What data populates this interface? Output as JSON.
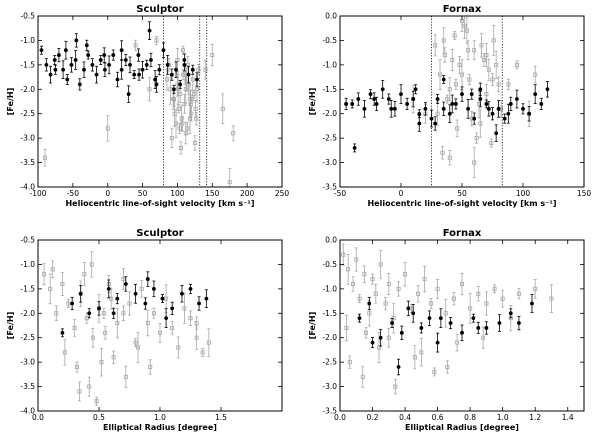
{
  "colors": {
    "member": "#000000",
    "field": "#a6a6a6",
    "axis": "#000000"
  },
  "chart_data": [
    {
      "type": "scatter",
      "title": "Sculptor",
      "xlabel": "Heliocentric line-of-sight velocity [km s⁻¹]",
      "ylabel": "[Fe/H]",
      "xlim": [
        -100,
        250
      ],
      "ylim": [
        -4.0,
        -0.5
      ],
      "xticks": [
        -100,
        -50,
        0,
        50,
        100,
        150,
        200,
        250
      ],
      "yticks": [
        -4.0,
        -3.5,
        -3.0,
        -2.5,
        -2.0,
        -1.5,
        -1.0,
        -0.5
      ],
      "vlines": [
        80,
        132,
        142
      ],
      "series": [
        {
          "name": "member",
          "x": [
            -95,
            -88,
            -82,
            -76,
            -70,
            -64,
            -58,
            -52,
            -46,
            -40,
            -34,
            -28,
            -22,
            -16,
            -10,
            -4,
            2,
            8,
            14,
            20,
            26,
            32,
            38,
            44,
            50,
            56,
            62,
            68,
            74,
            80,
            86,
            92,
            98,
            104,
            110,
            116,
            122,
            128,
            -60,
            -30,
            -5,
            20,
            45,
            70,
            95,
            110,
            30,
            -75,
            -45,
            60
          ],
          "y": [
            -1.2,
            -1.5,
            -1.7,
            -1.4,
            -1.3,
            -1.6,
            -1.8,
            -1.5,
            -1.4,
            -1.9,
            -1.6,
            -1.3,
            -1.5,
            -1.7,
            -1.4,
            -1.6,
            -1.5,
            -1.3,
            -1.8,
            -1.6,
            -1.4,
            -1.5,
            -1.7,
            -1.3,
            -1.6,
            -1.5,
            -1.4,
            -1.8,
            -1.6,
            -1.2,
            -1.5,
            -1.7,
            -1.6,
            -1.9,
            -1.5,
            -1.7,
            -1.6,
            -1.8,
            -1.2,
            -1.1,
            -1.3,
            -1.2,
            -1.7,
            -1.9,
            -2.0,
            -1.4,
            -2.1,
            -1.6,
            -1.0,
            -0.8
          ]
        },
        {
          "name": "field",
          "x": [
            85,
            90,
            95,
            100,
            102,
            104,
            106,
            108,
            110,
            112,
            114,
            116,
            118,
            120,
            122,
            124,
            126,
            128,
            130,
            92,
            98,
            105,
            112,
            118,
            125,
            100,
            108,
            115,
            96,
            103,
            111,
            119,
            127,
            150,
            165,
            180,
            60,
            70,
            -90,
            0,
            40,
            140,
            175,
            88,
            94,
            101,
            107,
            113,
            121
          ],
          "y": [
            -1.8,
            -2.0,
            -2.2,
            -1.9,
            -2.4,
            -2.1,
            -2.6,
            -1.7,
            -2.3,
            -2.0,
            -2.8,
            -1.9,
            -2.2,
            -2.5,
            -1.8,
            -2.1,
            -2.4,
            -2.0,
            -1.6,
            -3.0,
            -2.7,
            -3.2,
            -2.9,
            -2.6,
            -3.1,
            -1.4,
            -1.2,
            -1.5,
            -2.5,
            -2.8,
            -1.7,
            -2.3,
            -2.6,
            -1.3,
            -2.4,
            -2.9,
            -2.0,
            -1.0,
            -3.4,
            -2.8,
            -1.1,
            -1.6,
            -3.9,
            -1.5,
            -2.2,
            -2.0,
            -2.7,
            -1.8,
            -2.2
          ]
        }
      ]
    },
    {
      "type": "scatter",
      "title": "Fornax",
      "xlabel": "Heliocentric line-of-sight velocity [km s⁻¹]",
      "ylabel": "[Fe/H]",
      "xlim": [
        -50,
        150
      ],
      "ylim": [
        -3.5,
        0.0
      ],
      "xticks": [
        -50,
        0,
        50,
        100,
        150
      ],
      "yticks": [
        -3.5,
        -3.0,
        -2.5,
        -2.0,
        -1.5,
        -1.0,
        -0.5,
        0.0
      ],
      "vlines": [
        25,
        83
      ],
      "series": [
        {
          "name": "member",
          "x": [
            -40,
            -35,
            -30,
            -25,
            -20,
            -15,
            -10,
            -5,
            0,
            5,
            10,
            15,
            20,
            25,
            30,
            35,
            40,
            45,
            50,
            55,
            60,
            65,
            70,
            75,
            80,
            85,
            90,
            95,
            100,
            105,
            110,
            115,
            120,
            -38,
            -22,
            -8,
            12,
            28,
            42,
            58,
            72,
            88,
            -45,
            15,
            35,
            65,
            78
          ],
          "y": [
            -1.8,
            -1.7,
            -1.9,
            -1.6,
            -1.8,
            -1.5,
            -1.7,
            -1.9,
            -1.6,
            -1.8,
            -1.7,
            -2.0,
            -1.9,
            -2.1,
            -1.7,
            -1.9,
            -2.0,
            -1.8,
            -1.6,
            -1.9,
            -2.1,
            -1.7,
            -1.8,
            -2.0,
            -1.9,
            -2.1,
            -1.8,
            -1.7,
            -1.9,
            -2.0,
            -1.6,
            -1.8,
            -1.5,
            -2.7,
            -1.7,
            -1.9,
            -1.5,
            -2.2,
            -1.8,
            -1.6,
            -1.9,
            -2.0,
            -1.8,
            -2.2,
            -1.3,
            -1.5,
            -2.4
          ]
        },
        {
          "name": "field",
          "x": [
            28,
            32,
            36,
            40,
            44,
            48,
            52,
            56,
            60,
            64,
            68,
            72,
            76,
            80,
            30,
            38,
            46,
            54,
            62,
            70,
            78,
            34,
            42,
            50,
            58,
            66,
            74,
            82,
            35,
            45,
            55,
            65,
            75,
            50,
            60,
            40,
            70,
            95,
            110,
            105,
            88,
            20,
            10
          ],
          "y": [
            -0.6,
            -1.2,
            -0.8,
            -1.5,
            -0.4,
            -1.0,
            -0.2,
            -1.3,
            -0.7,
            -1.8,
            -0.9,
            -1.1,
            -0.5,
            -1.4,
            -2.0,
            -1.7,
            -2.3,
            -0.3,
            -2.5,
            -1.6,
            -1.0,
            -2.8,
            -0.9,
            -1.2,
            -2.1,
            -0.6,
            -2.6,
            -1.9,
            -0.5,
            -1.4,
            -0.7,
            -2.2,
            -1.3,
            -0.1,
            -3.0,
            -2.9,
            -0.8,
            -1.0,
            -1.2,
            -2.0,
            -1.4,
            -2.0,
            -1.7
          ]
        }
      ]
    },
    {
      "type": "scatter",
      "title": "Sculptor",
      "xlabel": "Elliptical Radius [degree]",
      "ylabel": "[Fe/H]",
      "xlim": [
        0.0,
        2.0
      ],
      "ylim": [
        -4.0,
        -0.5
      ],
      "xticks": [
        0.0,
        0.5,
        1.0,
        1.5,
        2.0
      ],
      "yticks": [
        -4.0,
        -3.5,
        -3.0,
        -2.5,
        -2.0,
        -1.5,
        -1.0,
        -0.5
      ],
      "xtick_labels": [
        "0.0",
        "0.5",
        "1.0",
        "1.5",
        ""
      ],
      "series": [
        {
          "name": "member",
          "x": [
            0.2,
            0.28,
            0.35,
            0.42,
            0.5,
            0.58,
            0.65,
            0.72,
            0.8,
            0.88,
            0.95,
            1.02,
            1.1,
            1.18,
            1.25,
            1.32,
            1.38,
            0.62,
            0.9,
            1.05
          ],
          "y": [
            -2.4,
            -1.8,
            -1.6,
            -2.0,
            -1.9,
            -1.5,
            -1.7,
            -1.4,
            -1.6,
            -1.8,
            -1.5,
            -1.7,
            -1.9,
            -1.6,
            -1.5,
            -1.8,
            -1.7,
            -2.0,
            -1.3,
            -2.1
          ]
        },
        {
          "name": "field",
          "x": [
            0.05,
            0.1,
            0.15,
            0.2,
            0.25,
            0.3,
            0.35,
            0.4,
            0.45,
            0.5,
            0.55,
            0.6,
            0.65,
            0.7,
            0.75,
            0.8,
            0.85,
            0.9,
            0.95,
            1.0,
            1.05,
            1.1,
            1.15,
            1.2,
            1.25,
            1.3,
            1.35,
            0.12,
            0.22,
            0.32,
            0.42,
            0.52,
            0.62,
            0.72,
            0.82,
            0.92,
            0.38,
            0.48,
            0.58,
            0.44,
            0.54,
            0.34,
            1.4,
            1.3,
            0.7
          ],
          "y": [
            -1.2,
            -1.5,
            -2.0,
            -1.4,
            -1.8,
            -2.3,
            -1.6,
            -2.1,
            -2.5,
            -1.9,
            -2.4,
            -1.7,
            -2.2,
            -2.0,
            -1.8,
            -2.6,
            -1.5,
            -2.2,
            -2.0,
            -2.4,
            -1.7,
            -2.3,
            -2.7,
            -1.9,
            -2.1,
            -2.5,
            -2.8,
            -1.1,
            -2.8,
            -3.1,
            -3.5,
            -3.0,
            -2.9,
            -3.3,
            -2.7,
            -3.1,
            -1.2,
            -3.8,
            -1.4,
            -1.0,
            -2.0,
            -3.6,
            -2.6,
            -2.2,
            -1.3
          ]
        }
      ]
    },
    {
      "type": "scatter",
      "title": "Fornax",
      "xlabel": "Elliptical Radius [degree]",
      "ylabel": "[Fe/H]",
      "xlim": [
        0.0,
        1.5
      ],
      "ylim": [
        -3.5,
        0.0
      ],
      "xticks": [
        0.0,
        0.2,
        0.4,
        0.6,
        0.8,
        1.0,
        1.2,
        1.4
      ],
      "yticks": [
        -3.5,
        -3.0,
        -2.5,
        -2.0,
        -1.5,
        -1.0,
        -0.5,
        0.0
      ],
      "series": [
        {
          "name": "member",
          "x": [
            0.12,
            0.18,
            0.25,
            0.32,
            0.38,
            0.45,
            0.5,
            0.55,
            0.6,
            0.68,
            0.75,
            0.82,
            0.9,
            0.98,
            1.05,
            1.1,
            1.18,
            0.2,
            0.42,
            0.62,
            0.85,
            0.36
          ],
          "y": [
            -1.6,
            -1.3,
            -2.0,
            -1.7,
            -1.9,
            -1.5,
            -1.8,
            -1.6,
            -2.1,
            -1.7,
            -1.9,
            -1.6,
            -1.8,
            -1.7,
            -1.5,
            -1.7,
            -1.3,
            -2.1,
            -1.4,
            -1.6,
            -1.8,
            -2.6
          ]
        },
        {
          "name": "field",
          "x": [
            0.02,
            0.05,
            0.08,
            0.1,
            0.12,
            0.15,
            0.18,
            0.2,
            0.22,
            0.25,
            0.28,
            0.3,
            0.33,
            0.36,
            0.4,
            0.44,
            0.48,
            0.52,
            0.56,
            0.6,
            0.65,
            0.7,
            0.75,
            0.8,
            0.85,
            0.9,
            0.95,
            1.0,
            1.05,
            1.1,
            1.2,
            1.3,
            0.06,
            0.14,
            0.24,
            0.34,
            0.46,
            0.58,
            0.72,
            0.04,
            0.16,
            0.3,
            0.5,
            0.66,
            0.88
          ],
          "y": [
            -0.3,
            -0.6,
            -0.9,
            -0.4,
            -1.2,
            -0.7,
            -1.5,
            -0.8,
            -1.1,
            -0.5,
            -1.3,
            -0.9,
            -1.6,
            -1.0,
            -0.7,
            -1.4,
            -1.1,
            -0.8,
            -1.3,
            -1.0,
            -1.5,
            -1.2,
            -0.9,
            -1.4,
            -1.1,
            -1.3,
            -1.0,
            -1.2,
            -1.6,
            -1.1,
            -1.0,
            -1.2,
            -2.5,
            -2.8,
            -2.2,
            -3.0,
            -2.4,
            -2.7,
            -2.1,
            -1.8,
            -1.9,
            -2.0,
            -2.3,
            -2.6,
            -2.0
          ]
        }
      ]
    }
  ]
}
